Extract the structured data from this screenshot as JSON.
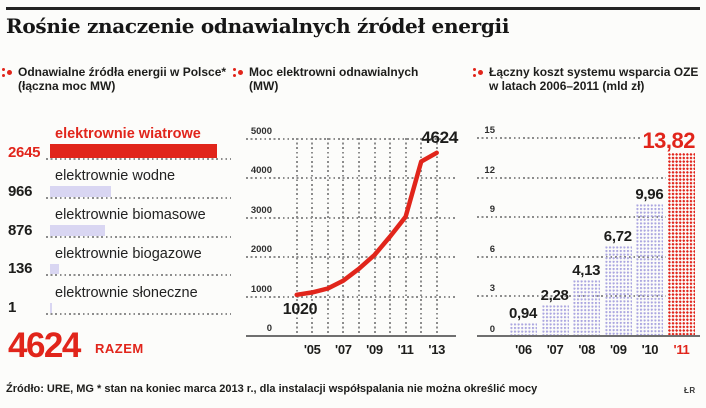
{
  "title": "Rośnie znaczenie odnawialnych źródeł energii",
  "colors": {
    "accent_red": "#e1251b",
    "bar_lavender": "#d9d6f2",
    "bar_dot_lavender": "#aba6e0",
    "grid_gray": "#8c8c8c",
    "axis_gray": "#6f6f6f",
    "text_black": "#1d1d1b"
  },
  "panels": {
    "left": {
      "header_line1": "Odnawialne źródła energii w Polsce*",
      "header_line2": "(łączna moc MW)"
    },
    "middle": {
      "header_line1": "Moc elektrowni odnawialnych",
      "header_line2": "(MW)"
    },
    "right": {
      "header_line1": "Łączny koszt systemu wsparcia OZE",
      "header_line2": "w latach 2006–2011 (mld zł)"
    }
  },
  "chart_data": [
    {
      "type": "bar",
      "orientation": "horizontal",
      "title": "Odnawialne źródła energii w Polsce* (łączna moc MW)",
      "categories": [
        "elektrownie wiatrowe",
        "elektrownie wodne",
        "elektrownie biomasowe",
        "elektrownie biogazowe",
        "elektrownie słoneczne"
      ],
      "values": [
        2645,
        966,
        876,
        136,
        1
      ],
      "value_labels": [
        "2645",
        "966",
        "876",
        "136",
        "1"
      ],
      "highlight_index": 0,
      "max": 2645,
      "total": 4624,
      "total_display": "4624",
      "total_label": "RAZEM",
      "unit": "MW"
    },
    {
      "type": "line",
      "title": "Moc elektrowni odnawialnych (MW)",
      "x": [
        "'04",
        "'05",
        "'06",
        "'07",
        "'08",
        "'09",
        "'10",
        "'11",
        "'12",
        "'13"
      ],
      "x_tick_labels": [
        "'05",
        "'07",
        "'09",
        "'11",
        "'13"
      ],
      "values": [
        1020,
        1080,
        1180,
        1380,
        1680,
        2030,
        2500,
        3000,
        4400,
        4624
      ],
      "first_point_label": "1020",
      "last_point_label": "4624",
      "ylim": [
        0,
        5000
      ],
      "yticks": [
        0,
        1000,
        2000,
        3000,
        4000,
        5000
      ],
      "grid": "dotted"
    },
    {
      "type": "bar",
      "title": "Łączny koszt systemu wsparcia OZE w latach 2006–2011 (mld zł)",
      "categories": [
        "'06",
        "'07",
        "'08",
        "'09",
        "'10",
        "'11"
      ],
      "values": [
        0.94,
        2.28,
        4.13,
        6.72,
        9.96,
        13.82
      ],
      "value_labels": [
        "0,94",
        "2,28",
        "4,13",
        "6,72",
        "9,96",
        "13,82"
      ],
      "highlight_index": 5,
      "ylim": [
        0,
        15
      ],
      "yticks": [
        0,
        3,
        6,
        9,
        12,
        15
      ],
      "unit": "mld zł",
      "grid": "dotted"
    }
  ],
  "footer": {
    "source": "Źródło: URE, MG",
    "footnote": "* stan na koniec marca 2013 r., dla instalacji współspalania nie można określić mocy",
    "credit": "ŁR"
  }
}
